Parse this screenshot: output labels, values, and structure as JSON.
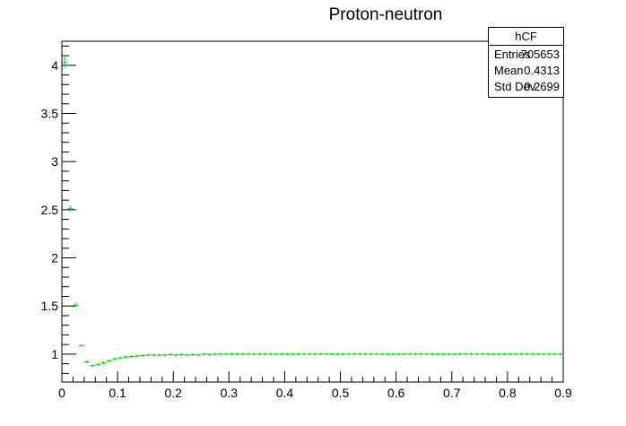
{
  "chart_data": {
    "type": "scatter",
    "title": "Proton-neutron",
    "xlabel": "",
    "ylabel": "",
    "xlim": [
      0,
      0.9
    ],
    "ylim": [
      0.71,
      4.25
    ],
    "grid": false,
    "legend": "none",
    "marker_color": "#00cc00",
    "x_ticks": [
      "0",
      "0.1",
      "0.2",
      "0.3",
      "0.4",
      "0.5",
      "0.6",
      "0.7",
      "0.8",
      "0.9"
    ],
    "y_ticks": [
      "1",
      "1.5",
      "2",
      "2.5",
      "3",
      "3.5",
      "4"
    ],
    "x_tick_values": [
      0,
      0.1,
      0.2,
      0.3,
      0.4,
      0.5,
      0.6,
      0.7,
      0.8,
      0.9
    ],
    "y_tick_values": [
      1,
      1.5,
      2,
      2.5,
      3,
      3.5,
      4
    ],
    "series": [
      {
        "x": [
          0.005,
          0.015,
          0.025,
          0.035,
          0.045,
          0.055,
          0.065,
          0.075,
          0.085,
          0.095,
          0.105,
          0.115,
          0.125,
          0.135,
          0.145,
          0.155,
          0.165,
          0.175,
          0.185,
          0.195,
          0.205,
          0.215,
          0.225,
          0.235,
          0.245,
          0.255,
          0.265,
          0.275,
          0.285,
          0.295,
          0.305,
          0.315,
          0.325,
          0.335,
          0.345,
          0.355,
          0.365,
          0.375,
          0.385,
          0.395,
          0.405,
          0.415,
          0.425,
          0.435,
          0.445,
          0.455,
          0.465,
          0.475,
          0.485,
          0.495,
          0.505,
          0.515,
          0.525,
          0.535,
          0.545,
          0.555,
          0.565,
          0.575,
          0.585,
          0.595,
          0.605,
          0.615,
          0.625,
          0.635,
          0.645,
          0.655,
          0.665,
          0.675,
          0.685,
          0.695,
          0.705,
          0.715,
          0.725,
          0.735,
          0.745,
          0.755,
          0.765,
          0.775,
          0.785,
          0.795,
          0.805,
          0.815,
          0.825,
          0.835,
          0.845,
          0.855,
          0.865,
          0.875,
          0.885,
          0.895
        ],
        "values": [
          4.03,
          2.51,
          1.51,
          1.09,
          0.92,
          0.88,
          0.89,
          0.91,
          0.93,
          0.95,
          0.96,
          0.97,
          0.975,
          0.98,
          0.985,
          0.99,
          0.99,
          0.99,
          0.99,
          0.995,
          0.99,
          0.995,
          0.99,
          0.995,
          0.99,
          1.0,
          0.995,
          1.0,
          1.0,
          1.0,
          1.0,
          1.0,
          1.0,
          1.0,
          1.0,
          1.0,
          1.0,
          1.0,
          1.0,
          1.0,
          1.0,
          1.0,
          1.0,
          1.0,
          1.0,
          1.0,
          1.0,
          1.0,
          1.0,
          1.0,
          1.0,
          1.0,
          1.0,
          1.0,
          1.0,
          1.0,
          1.0,
          1.0,
          1.0,
          1.0,
          1.0,
          1.0,
          1.0,
          1.0,
          1.0,
          1.0,
          1.0,
          1.0,
          1.0,
          1.0,
          1.0,
          1.0,
          1.0,
          1.0,
          1.0,
          1.0,
          1.0,
          1.0,
          1.0,
          1.0,
          1.0,
          1.0,
          1.0,
          1.0,
          1.0,
          1.0,
          1.0,
          1.0,
          1.0,
          1.0
        ],
        "errors": [
          0.06,
          0.03,
          0.02,
          0.015,
          0.01,
          0.01,
          0.008,
          0.008,
          0.006,
          0.006,
          0.005,
          0.005,
          0.005,
          0.005,
          0.004,
          0.004,
          0.004,
          0.004,
          0.004,
          0.004,
          0.003,
          0.003,
          0.003,
          0.003,
          0.003,
          0.003,
          0.003,
          0.003,
          0.003,
          0.003,
          0.003,
          0.003,
          0.003,
          0.003,
          0.003,
          0.003,
          0.003,
          0.003,
          0.003,
          0.003,
          0.003,
          0.003,
          0.003,
          0.003,
          0.003,
          0.003,
          0.003,
          0.003,
          0.003,
          0.003,
          0.003,
          0.003,
          0.003,
          0.003,
          0.003,
          0.003,
          0.003,
          0.003,
          0.003,
          0.003,
          0.003,
          0.003,
          0.003,
          0.003,
          0.003,
          0.003,
          0.003,
          0.003,
          0.003,
          0.003,
          0.003,
          0.003,
          0.003,
          0.003,
          0.003,
          0.003,
          0.003,
          0.003,
          0.003,
          0.003,
          0.003,
          0.003,
          0.003,
          0.003,
          0.003,
          0.003,
          0.003,
          0.003,
          0.003,
          0.003
        ]
      }
    ]
  },
  "stats_box": {
    "name": "hCF",
    "entries_label": "Entries",
    "entries_value": "705653",
    "mean_label": "Mean",
    "mean_value": "0.4313",
    "stddev_label": "Std Dev",
    "stddev_value": "0.2699"
  }
}
